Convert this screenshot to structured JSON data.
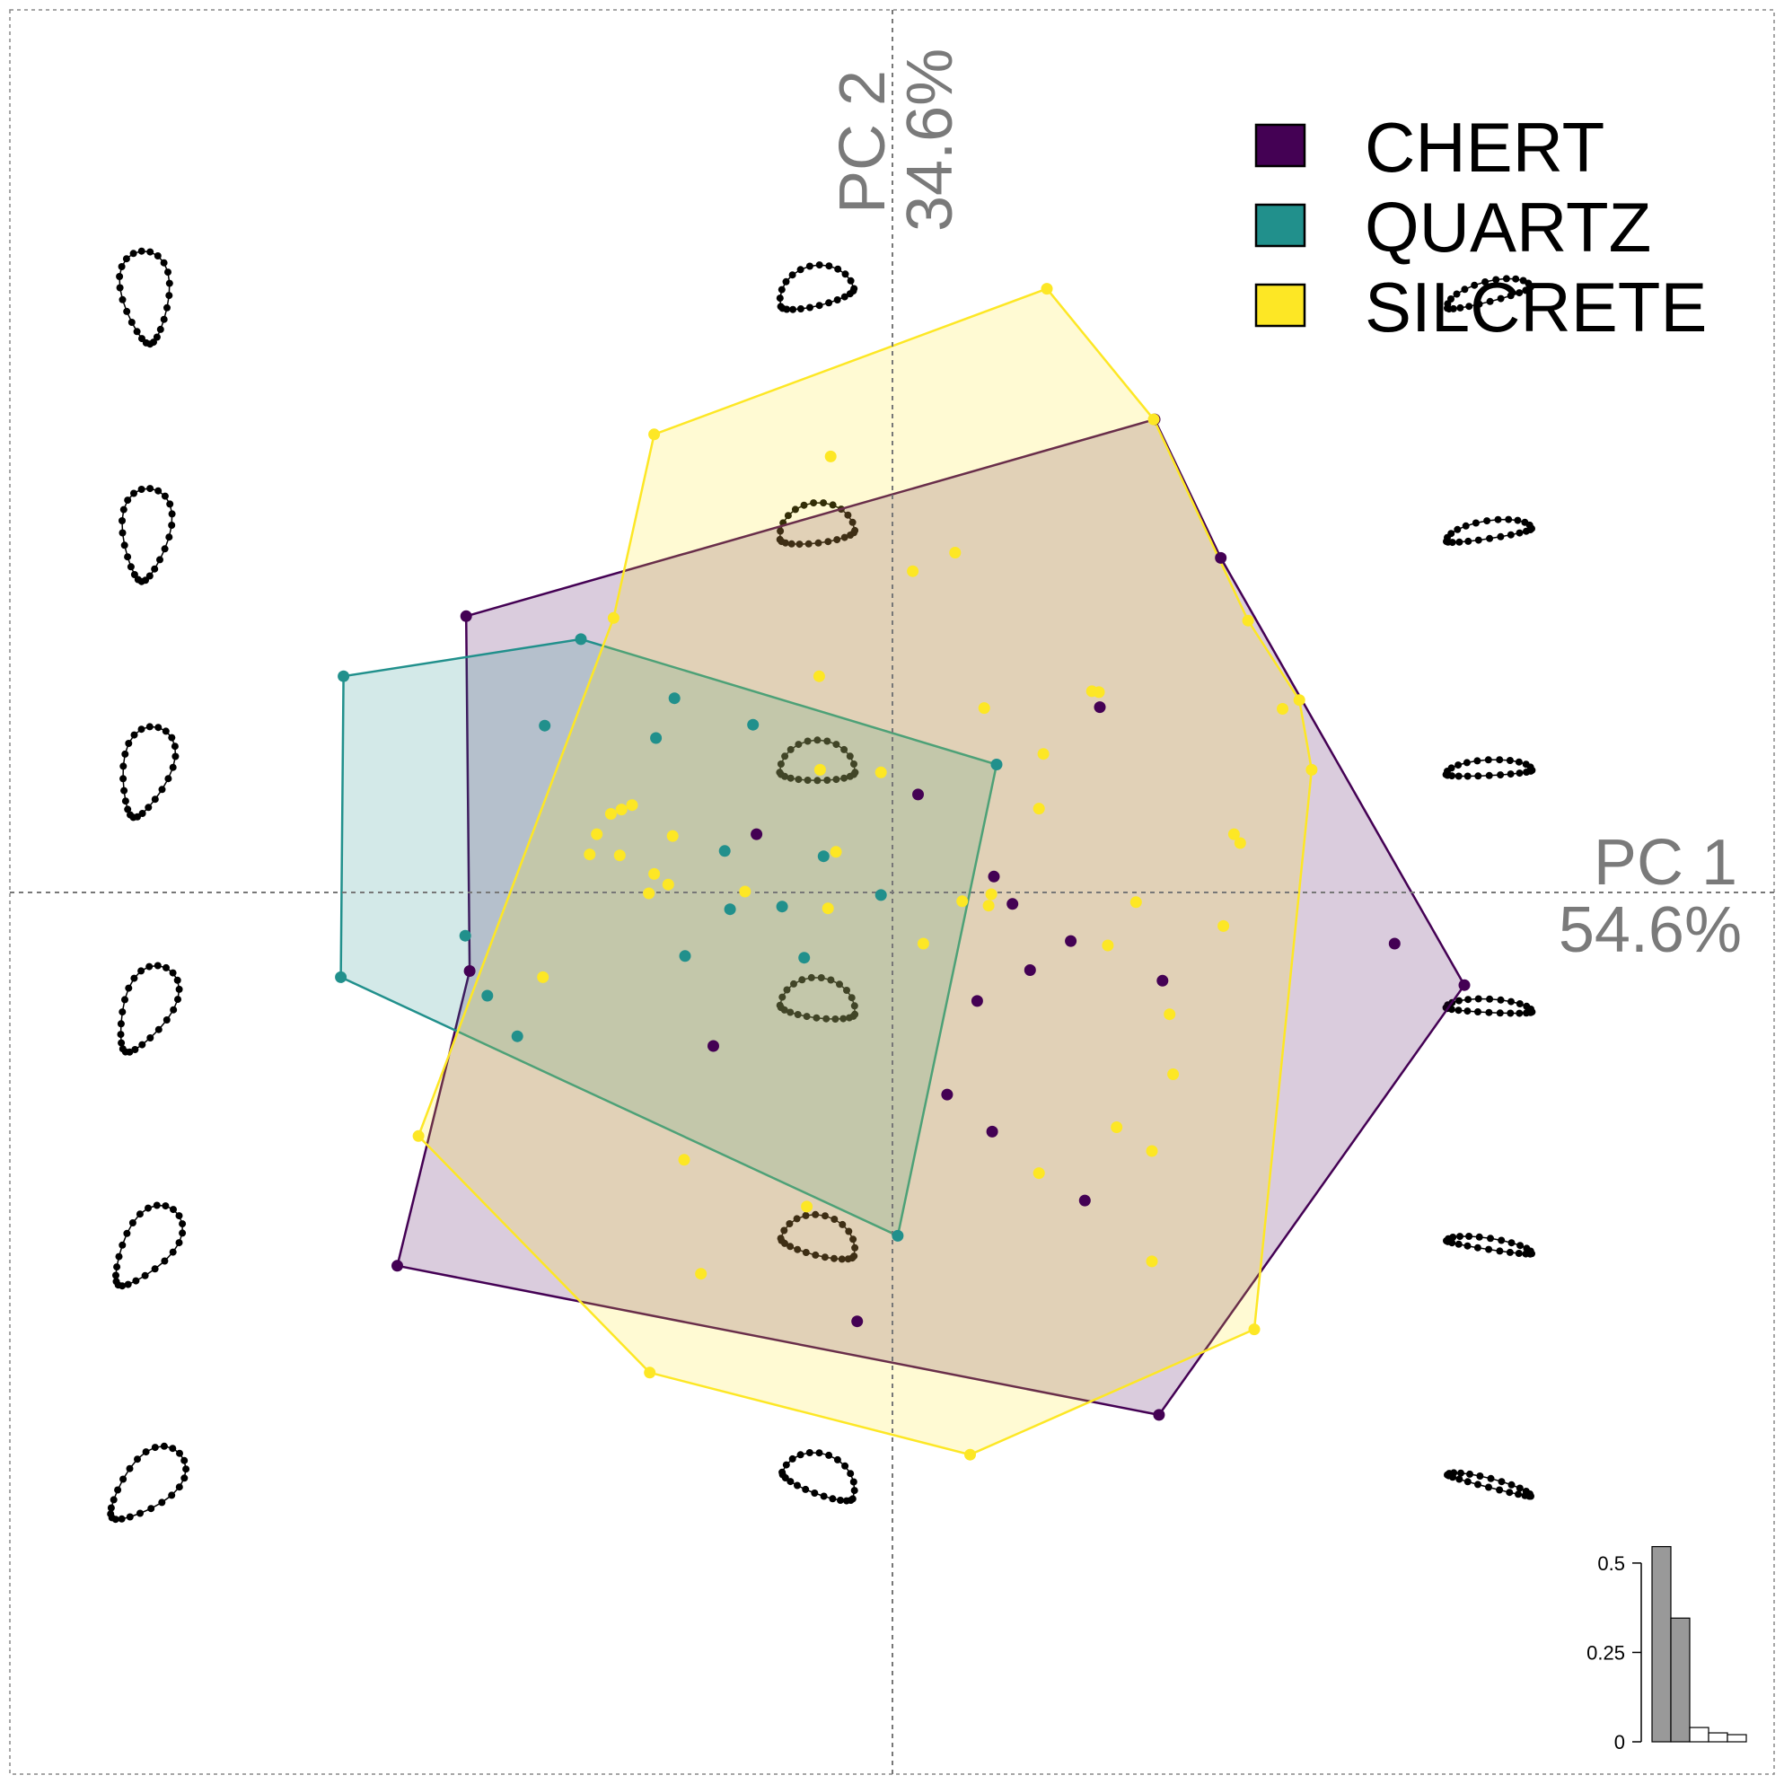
{
  "chart_data": {
    "type": "scatter",
    "subtype": "pca-morphospace",
    "title": "",
    "xaxis": {
      "name": "PC 1",
      "variance": "54.6%"
    },
    "yaxis": {
      "name": "PC 2",
      "variance": "34.6%"
    },
    "xlim": [
      -1.0,
      1.0
    ],
    "ylim": [
      -1.0,
      1.0
    ],
    "grid": "origin-cross",
    "legend_position": "top-right",
    "series": [
      {
        "name": "CHERT",
        "color": "#440154",
        "hull": [
          [
            -0.483,
            0.313
          ],
          [
            0.297,
            0.536
          ],
          [
            0.372,
            0.379
          ],
          [
            0.648,
            -0.105
          ],
          [
            0.302,
            -0.592
          ],
          [
            -0.561,
            -0.423
          ],
          [
            -0.479,
            -0.089
          ]
        ],
        "points": [
          [
            -0.483,
            0.313
          ],
          [
            0.297,
            0.536
          ],
          [
            0.372,
            0.379
          ],
          [
            0.648,
            -0.105
          ],
          [
            0.302,
            -0.592
          ],
          [
            -0.561,
            -0.423
          ],
          [
            -0.479,
            -0.089
          ],
          [
            0.235,
            0.21
          ],
          [
            0.136,
            -0.013
          ],
          [
            0.202,
            -0.055
          ],
          [
            0.156,
            -0.088
          ],
          [
            -0.154,
            0.066
          ],
          [
            0.029,
            0.111
          ],
          [
            0.096,
            -0.123
          ],
          [
            -0.203,
            -0.174
          ],
          [
            0.115,
            0.018
          ],
          [
            0.569,
            -0.058
          ],
          [
            0.062,
            -0.229
          ],
          [
            0.113,
            -0.271
          ],
          [
            0.306,
            -0.1
          ],
          [
            0.218,
            -0.349
          ],
          [
            -0.04,
            -0.486
          ]
        ]
      },
      {
        "name": "QUARTZ",
        "color": "#21908c",
        "hull": [
          [
            -0.625,
            -0.096
          ],
          [
            -0.622,
            0.245
          ],
          [
            -0.353,
            0.287
          ],
          [
            0.118,
            0.145
          ],
          [
            0.006,
            -0.389
          ]
        ],
        "points": [
          [
            -0.625,
            -0.096
          ],
          [
            -0.622,
            0.245
          ],
          [
            -0.353,
            0.287
          ],
          [
            0.118,
            0.145
          ],
          [
            0.006,
            -0.389
          ],
          [
            -0.394,
            0.189
          ],
          [
            -0.247,
            0.22
          ],
          [
            -0.268,
            0.175
          ],
          [
            -0.158,
            0.19
          ],
          [
            -0.19,
            0.047
          ],
          [
            -0.078,
            0.041
          ],
          [
            -0.184,
            -0.019
          ],
          [
            -0.125,
            -0.016
          ],
          [
            -0.013,
            -0.003
          ],
          [
            -0.235,
            -0.072
          ],
          [
            -0.1,
            -0.074
          ],
          [
            -0.484,
            -0.049
          ],
          [
            -0.459,
            -0.117
          ],
          [
            -0.425,
            -0.163
          ]
        ]
      },
      {
        "name": "SILCRETE",
        "color": "#fde725",
        "hull": [
          [
            0.175,
            0.684
          ],
          [
            0.296,
            0.536
          ],
          [
            0.403,
            0.308
          ],
          [
            0.461,
            0.218
          ],
          [
            0.475,
            0.139
          ],
          [
            0.41,
            -0.495
          ],
          [
            0.088,
            -0.637
          ],
          [
            -0.275,
            -0.544
          ],
          [
            -0.537,
            -0.276
          ],
          [
            -0.316,
            0.311
          ],
          [
            -0.27,
            0.519
          ]
        ],
        "points": [
          [
            0.175,
            0.684
          ],
          [
            0.296,
            0.536
          ],
          [
            0.403,
            0.308
          ],
          [
            0.461,
            0.218
          ],
          [
            0.475,
            0.139
          ],
          [
            0.41,
            -0.495
          ],
          [
            0.088,
            -0.637
          ],
          [
            -0.275,
            -0.544
          ],
          [
            -0.537,
            -0.276
          ],
          [
            -0.316,
            0.311
          ],
          [
            -0.27,
            0.519
          ],
          [
            -0.07,
            0.494
          ],
          [
            0.023,
            0.364
          ],
          [
            0.071,
            0.385
          ],
          [
            -0.083,
            0.245
          ],
          [
            0.104,
            0.209
          ],
          [
            0.226,
            0.228
          ],
          [
            0.234,
            0.227
          ],
          [
            0.442,
            0.208
          ],
          [
            0.171,
            0.157
          ],
          [
            -0.082,
            0.139
          ],
          [
            -0.013,
            0.136
          ],
          [
            0.166,
            0.095
          ],
          [
            0.387,
            0.066
          ],
          [
            0.394,
            0.056
          ],
          [
            -0.295,
            0.099
          ],
          [
            -0.307,
            0.094
          ],
          [
            -0.319,
            0.089
          ],
          [
            -0.335,
            0.066
          ],
          [
            -0.249,
            0.064
          ],
          [
            -0.309,
            0.042
          ],
          [
            -0.27,
            0.021
          ],
          [
            -0.343,
            0.043
          ],
          [
            -0.064,
            0.046
          ],
          [
            -0.254,
            0.009
          ],
          [
            -0.276,
            -0.001
          ],
          [
            -0.167,
            0.001
          ],
          [
            0.112,
            -0.002
          ],
          [
            0.079,
            -0.01
          ],
          [
            0.109,
            -0.015
          ],
          [
            0.276,
            -0.011
          ],
          [
            -0.073,
            -0.018
          ],
          [
            0.035,
            -0.058
          ],
          [
            0.244,
            -0.06
          ],
          [
            0.375,
            -0.038
          ],
          [
            0.314,
            -0.138
          ],
          [
            -0.396,
            -0.096
          ],
          [
            0.318,
            -0.206
          ],
          [
            0.254,
            -0.266
          ],
          [
            -0.236,
            -0.303
          ],
          [
            0.166,
            -0.318
          ],
          [
            0.294,
            -0.293
          ],
          [
            -0.097,
            -0.356
          ],
          [
            0.294,
            -0.418
          ],
          [
            -0.217,
            -0.432
          ]
        ]
      }
    ],
    "morphospace_rows_y": [
      -0.672,
      -0.402,
      -0.133,
      0.136,
      0.405,
      0.674
    ],
    "morphospace_cols_x": [
      -0.846,
      -0.085,
      0.676
    ],
    "inset": {
      "type": "bar",
      "values": [
        0.546,
        0.346,
        0.04,
        0.025,
        0.02
      ],
      "highlighted_count": 2,
      "ylim": [
        0,
        0.55
      ],
      "yticks": [
        "0",
        "0.25",
        "0.5"
      ]
    }
  }
}
